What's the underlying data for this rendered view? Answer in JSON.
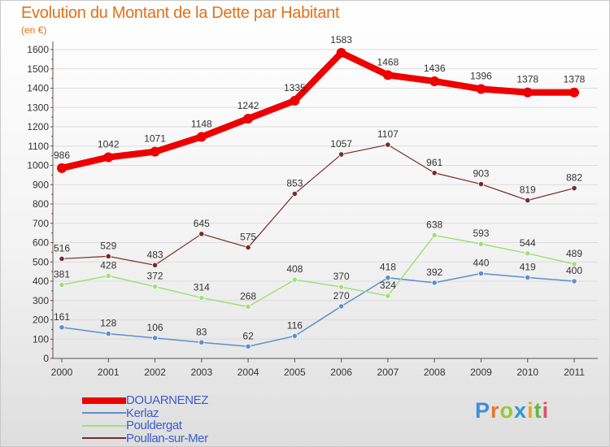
{
  "header": {
    "title": "Evolution du Montant de la Dette par Habitant",
    "unit": "(en €)"
  },
  "logo": {
    "text": "Proxiti",
    "letters": [
      "P",
      "r",
      "o",
      "x",
      "i",
      "t",
      "i"
    ]
  },
  "colors": {
    "DOUARNENEZ": "#ee0000",
    "Kerlaz": "#5b8fcf",
    "Pouldergat": "#9fe07a",
    "Poullan-sur-Mer": "#7a2a2a",
    "axis": "#555555",
    "grid": "#dcdcdc"
  },
  "chart_data": {
    "type": "line",
    "title": "Evolution du Montant de la Dette par Habitant",
    "xlabel": "",
    "ylabel": "(en €)",
    "categories": [
      "2000",
      "2001",
      "2002",
      "2003",
      "2004",
      "2005",
      "2006",
      "2007",
      "2008",
      "2009",
      "2010",
      "2011"
    ],
    "ylim": [
      0,
      1600
    ],
    "yticks": [
      0,
      100,
      200,
      300,
      400,
      500,
      600,
      700,
      800,
      900,
      1000,
      1100,
      1200,
      1300,
      1400,
      1500,
      1600
    ],
    "grid": true,
    "legend": "bottom-left",
    "series": [
      {
        "name": "DOUARNENEZ",
        "values": [
          986,
          1042,
          1071,
          1148,
          1242,
          1335,
          1583,
          1468,
          1436,
          1396,
          1378,
          1378
        ]
      },
      {
        "name": "Kerlaz",
        "values": [
          161,
          128,
          106,
          83,
          62,
          116,
          270,
          418,
          392,
          440,
          419,
          400
        ]
      },
      {
        "name": "Pouldergat",
        "values": [
          381,
          428,
          372,
          314,
          268,
          408,
          370,
          324,
          638,
          593,
          544,
          489
        ]
      },
      {
        "name": "Poullan-sur-Mer",
        "values": [
          516,
          529,
          483,
          645,
          575,
          853,
          1057,
          1107,
          961,
          903,
          819,
          882
        ]
      }
    ]
  }
}
